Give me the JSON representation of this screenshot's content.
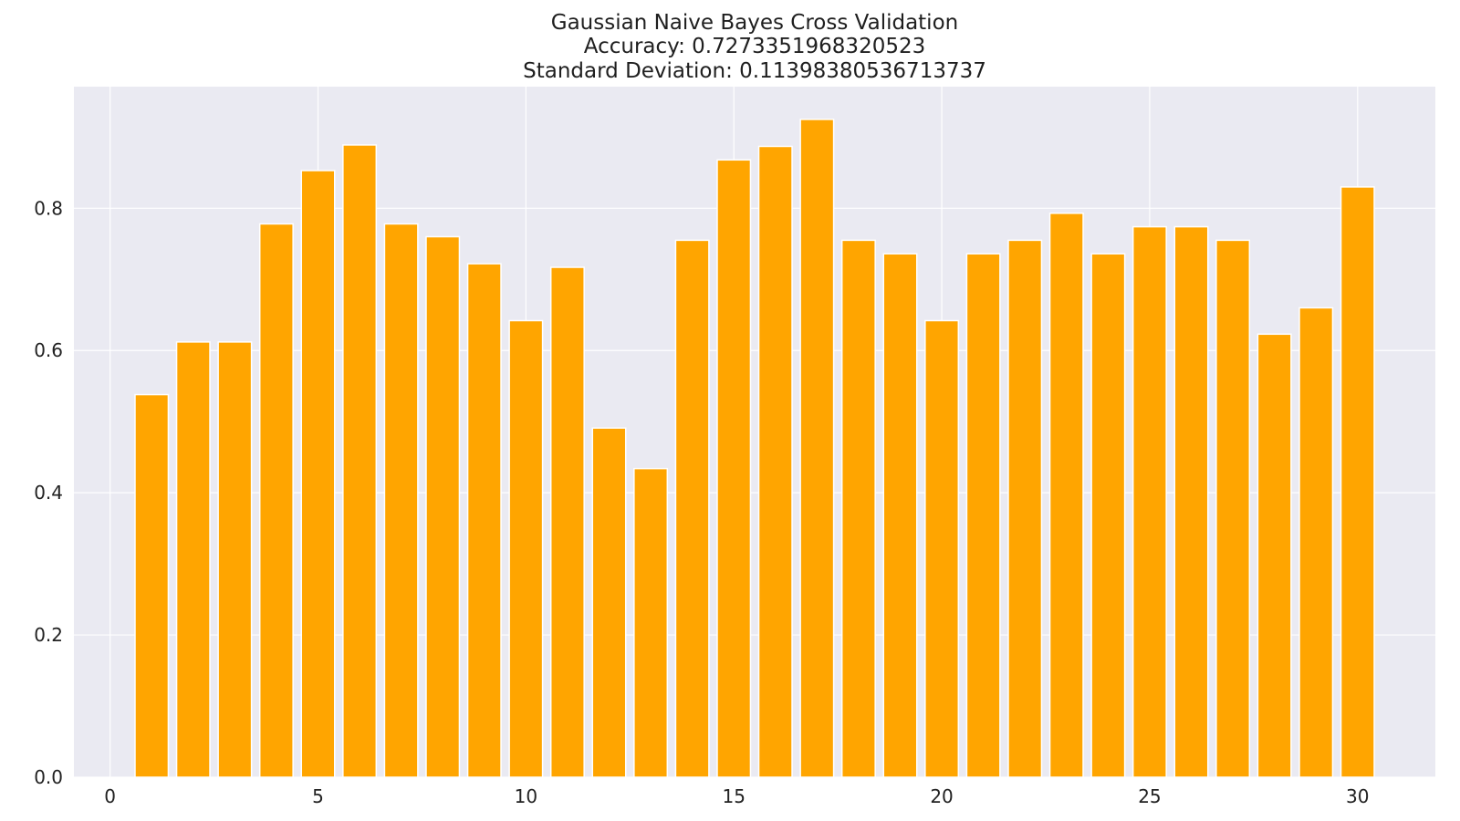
{
  "chart_data": {
    "type": "bar",
    "title_lines": [
      "Gaussian Naive Bayes Cross Validation",
      "Accuracy: 0.7273351968320523",
      "Standard Deviation: 0.11398380536713737"
    ],
    "xlabel": "",
    "ylabel": "",
    "x": [
      1,
      2,
      3,
      4,
      5,
      6,
      7,
      8,
      9,
      10,
      11,
      12,
      13,
      14,
      15,
      16,
      17,
      18,
      19,
      20,
      21,
      22,
      23,
      24,
      25,
      26,
      27,
      28,
      29,
      30
    ],
    "values": [
      0.538,
      0.612,
      0.612,
      0.778,
      0.853,
      0.889,
      0.778,
      0.76,
      0.722,
      0.642,
      0.717,
      0.491,
      0.434,
      0.755,
      0.868,
      0.887,
      0.925,
      0.755,
      0.736,
      0.642,
      0.736,
      0.755,
      0.793,
      0.736,
      0.774,
      0.774,
      0.755,
      0.623,
      0.66,
      0.83
    ],
    "xlim": [
      -0.87,
      31.87
    ],
    "ylim": [
      0,
      0.971
    ],
    "xticks": [
      0,
      5,
      10,
      15,
      20,
      25,
      30
    ],
    "xtick_labels": [
      "0",
      "5",
      "10",
      "15",
      "20",
      "25",
      "30"
    ],
    "yticks": [
      0.0,
      0.2,
      0.4,
      0.6,
      0.8
    ],
    "ytick_labels": [
      "0.0",
      "0.2",
      "0.4",
      "0.6",
      "0.8"
    ],
    "grid": true,
    "colors": {
      "bar": "#ffa500",
      "bar_edge": "#ffffff",
      "plot_background": "#eaeaf2",
      "grid": "#ffffff"
    }
  }
}
